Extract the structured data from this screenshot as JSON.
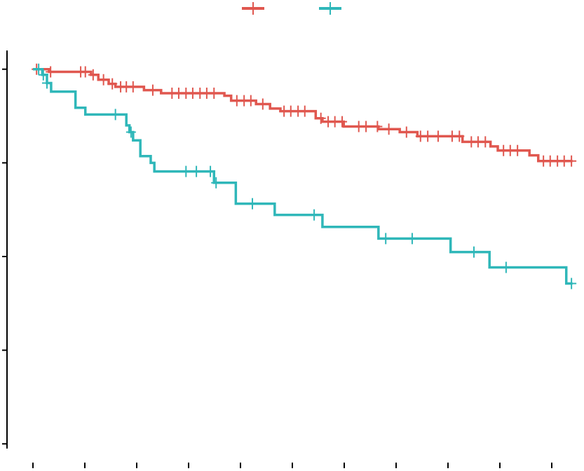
{
  "chart_data": {
    "type": "step",
    "xlim": [
      -0.5,
      10.5
    ],
    "xticks": [
      0,
      1,
      2,
      3,
      4,
      5,
      6,
      7,
      8,
      9,
      10
    ],
    "ylim": [
      -0.05,
      1.05
    ],
    "yticks": [
      0,
      0.25,
      0.5,
      0.75,
      1
    ],
    "legend": "top",
    "series": [
      {
        "color": "#e0574f",
        "x": [
          0,
          0.31,
          1.12,
          1.26,
          1.46,
          1.59,
          2.14,
          2.47,
          3.69,
          3.82,
          4.3,
          4.57,
          4.77,
          5.45,
          5.58,
          5.99,
          6.66,
          7.07,
          7.41,
          8.28,
          8.82,
          8.96,
          9.57,
          9.74,
          10.4
        ],
        "values": [
          1,
          0.993,
          0.985,
          0.972,
          0.961,
          0.953,
          0.944,
          0.936,
          0.929,
          0.916,
          0.907,
          0.895,
          0.888,
          0.869,
          0.86,
          0.847,
          0.84,
          0.832,
          0.821,
          0.806,
          0.794,
          0.783,
          0.77,
          0.755,
          0.755
        ],
        "censor_x": [
          0.07,
          0.34,
          0.92,
          1.01,
          1.16,
          1.36,
          1.53,
          1.69,
          1.8,
          1.93,
          2.31,
          2.68,
          2.81,
          2.95,
          3.08,
          3.22,
          3.35,
          3.49,
          3.93,
          4.07,
          4.2,
          4.43,
          4.84,
          4.97,
          5.11,
          5.24,
          5.55,
          5.69,
          5.82,
          5.96,
          6.28,
          6.42,
          6.64,
          6.86,
          7.2,
          7.47,
          7.61,
          7.81,
          8.08,
          8.22,
          8.45,
          8.58,
          8.72,
          9.07,
          9.2,
          9.34,
          9.84,
          9.97,
          10.11,
          10.24,
          10.38
        ]
      },
      {
        "color": "#2fb7b9",
        "x": [
          0,
          0.18,
          0.27,
          0.35,
          0.82,
          1.01,
          1.8,
          1.86,
          1.93,
          2.07,
          2.27,
          2.34,
          3.49,
          3.91,
          4.66,
          5.58,
          6.66,
          8.05,
          8.8,
          10.28,
          10.4
        ],
        "values": [
          1,
          0.985,
          0.963,
          0.94,
          0.897,
          0.879,
          0.85,
          0.832,
          0.81,
          0.768,
          0.75,
          0.727,
          0.697,
          0.641,
          0.611,
          0.579,
          0.548,
          0.512,
          0.471,
          0.428,
          0.428
        ],
        "censor_x": [
          0.11,
          0.2,
          0.27,
          1.59,
          1.89,
          2.95,
          3.15,
          3.42,
          3.53,
          4.23,
          5.42,
          6.8,
          7.31,
          8.5,
          9.12,
          10.38
        ]
      }
    ]
  }
}
